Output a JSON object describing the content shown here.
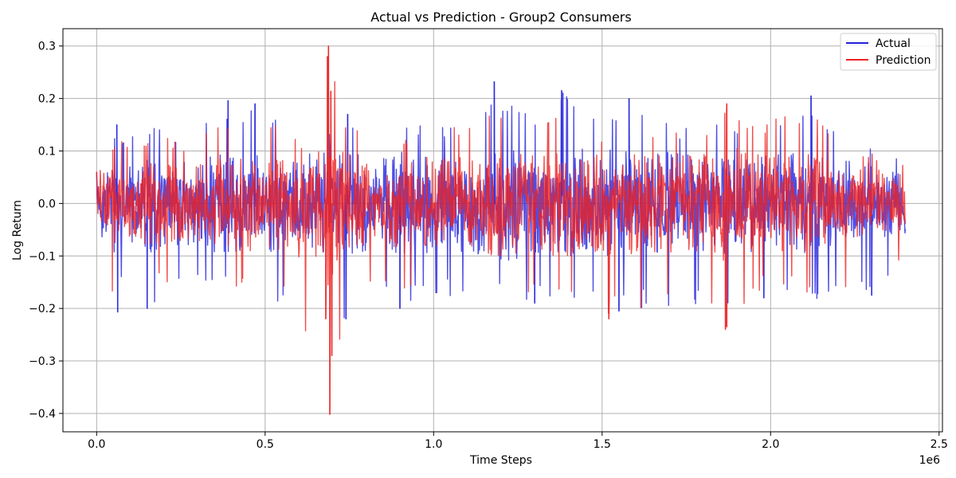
{
  "chart_data": {
    "type": "line",
    "title": "Actual vs Prediction - Group2 Consumers",
    "xlabel": "Time Steps",
    "ylabel": "Log Return",
    "x_offset_label": "1e6",
    "xlim": [
      -0.1,
      2.51
    ],
    "ylim": [
      -0.435,
      0.333
    ],
    "x_ticks": [
      0.0,
      0.5,
      1.0,
      1.5,
      2.0,
      2.5
    ],
    "x_tick_labels": [
      "0.0",
      "0.5",
      "1.0",
      "1.5",
      "2.0",
      "2.5"
    ],
    "y_ticks": [
      0.3,
      0.2,
      0.1,
      0.0,
      -0.1,
      -0.2,
      -0.3,
      -0.4
    ],
    "y_tick_labels": [
      "0.3",
      "0.2",
      "0.1",
      "0.0",
      "−0.1",
      "−0.2",
      "−0.3",
      "−0.4"
    ],
    "grid": true,
    "legend_position": "top-right",
    "x_range": [
      0.0,
      2.4
    ],
    "series": [
      {
        "name": "Actual",
        "color": "#2222dd",
        "upper_envelope": [
          [
            0.0,
            0.075
          ],
          [
            0.06,
            0.15
          ],
          [
            0.09,
            0.125
          ],
          [
            0.15,
            0.145
          ],
          [
            0.25,
            0.138
          ],
          [
            0.39,
            0.196
          ],
          [
            0.42,
            0.16
          ],
          [
            0.47,
            0.19
          ],
          [
            0.55,
            0.16
          ],
          [
            0.66,
            0.135
          ],
          [
            0.74,
            0.17
          ],
          [
            0.85,
            0.14
          ],
          [
            0.9,
            0.16
          ],
          [
            1.0,
            0.16
          ],
          [
            1.07,
            0.15
          ],
          [
            1.15,
            0.165
          ],
          [
            1.18,
            0.232
          ],
          [
            1.3,
            0.165
          ],
          [
            1.38,
            0.215
          ],
          [
            1.5,
            0.16
          ],
          [
            1.58,
            0.2
          ],
          [
            1.74,
            0.148
          ],
          [
            1.85,
            0.155
          ],
          [
            1.95,
            0.175
          ],
          [
            2.0,
            0.16
          ],
          [
            2.1,
            0.205
          ],
          [
            2.15,
            0.17
          ],
          [
            2.2,
            0.135
          ],
          [
            2.28,
            0.12
          ],
          [
            2.35,
            0.09
          ],
          [
            2.4,
            0.085
          ]
        ],
        "lower_envelope": [
          [
            0.0,
            -0.12
          ],
          [
            0.06,
            -0.21
          ],
          [
            0.09,
            -0.12
          ],
          [
            0.15,
            -0.2
          ],
          [
            0.25,
            -0.15
          ],
          [
            0.36,
            -0.16
          ],
          [
            0.47,
            -0.185
          ],
          [
            0.55,
            -0.19
          ],
          [
            0.74,
            -0.22
          ],
          [
            0.82,
            -0.17
          ],
          [
            0.9,
            -0.2
          ],
          [
            1.0,
            -0.18
          ],
          [
            1.07,
            -0.18
          ],
          [
            1.15,
            -0.19
          ],
          [
            1.3,
            -0.19
          ],
          [
            1.5,
            -0.2
          ],
          [
            1.6,
            -0.2
          ],
          [
            1.72,
            -0.2
          ],
          [
            1.85,
            -0.2
          ],
          [
            1.97,
            -0.18
          ],
          [
            2.06,
            -0.17
          ],
          [
            2.12,
            -0.19
          ],
          [
            2.2,
            -0.16
          ],
          [
            2.3,
            -0.175
          ],
          [
            2.4,
            -0.13
          ]
        ],
        "spikes": [
          [
            0.0625,
            -0.207
          ],
          [
            0.06,
            0.15
          ],
          [
            0.15,
            -0.2
          ],
          [
            0.39,
            0.196
          ],
          [
            0.47,
            0.19
          ],
          [
            0.74,
            -0.22
          ],
          [
            0.745,
            0.17
          ],
          [
            0.9,
            -0.2
          ],
          [
            1.18,
            0.232
          ],
          [
            1.3,
            -0.19
          ],
          [
            1.38,
            0.215
          ],
          [
            1.58,
            0.2
          ],
          [
            1.55,
            -0.205
          ],
          [
            1.98,
            -0.18
          ],
          [
            2.12,
            0.205
          ],
          [
            2.3,
            -0.175
          ]
        ]
      },
      {
        "name": "Prediction",
        "color": "#ee2222",
        "upper_envelope": [
          [
            0.0,
            0.065
          ],
          [
            0.06,
            0.13
          ],
          [
            0.09,
            0.11
          ],
          [
            0.15,
            0.13
          ],
          [
            0.25,
            0.12
          ],
          [
            0.39,
            0.16
          ],
          [
            0.47,
            0.17
          ],
          [
            0.55,
            0.14
          ],
          [
            0.66,
            0.12
          ],
          [
            0.69,
            0.3
          ],
          [
            0.74,
            0.15
          ],
          [
            0.85,
            0.12
          ],
          [
            1.0,
            0.15
          ],
          [
            1.15,
            0.15
          ],
          [
            1.18,
            0.2
          ],
          [
            1.3,
            0.15
          ],
          [
            1.38,
            0.185
          ],
          [
            1.5,
            0.14
          ],
          [
            1.58,
            0.17
          ],
          [
            1.74,
            0.13
          ],
          [
            1.85,
            0.14
          ],
          [
            1.87,
            0.19
          ],
          [
            1.95,
            0.16
          ],
          [
            2.1,
            0.19
          ],
          [
            2.2,
            0.12
          ],
          [
            2.28,
            0.1
          ],
          [
            2.4,
            0.08
          ]
        ],
        "lower_envelope": [
          [
            0.0,
            -0.11
          ],
          [
            0.06,
            -0.19
          ],
          [
            0.09,
            -0.11
          ],
          [
            0.15,
            -0.17
          ],
          [
            0.25,
            -0.14
          ],
          [
            0.36,
            -0.16
          ],
          [
            0.47,
            -0.17
          ],
          [
            0.55,
            -0.18
          ],
          [
            0.69,
            -0.402
          ],
          [
            0.74,
            -0.2
          ],
          [
            0.82,
            -0.16
          ],
          [
            0.9,
            -0.19
          ],
          [
            1.0,
            -0.17
          ],
          [
            1.15,
            -0.18
          ],
          [
            1.3,
            -0.18
          ],
          [
            1.52,
            -0.22
          ],
          [
            1.6,
            -0.2
          ],
          [
            1.72,
            -0.2
          ],
          [
            1.866,
            -0.24
          ],
          [
            1.97,
            -0.17
          ],
          [
            2.06,
            -0.17
          ],
          [
            2.12,
            -0.185
          ],
          [
            2.3,
            -0.16
          ],
          [
            2.4,
            -0.12
          ]
        ],
        "spikes": [
          [
            0.688,
            0.3
          ],
          [
            0.692,
            -0.402
          ],
          [
            0.695,
            0.214
          ],
          [
            0.685,
            0.28
          ],
          [
            0.698,
            -0.29
          ],
          [
            0.68,
            -0.22
          ],
          [
            1.866,
            -0.24
          ],
          [
            1.87,
            -0.235
          ],
          [
            1.52,
            -0.22
          ],
          [
            1.87,
            0.19
          ]
        ]
      }
    ]
  }
}
